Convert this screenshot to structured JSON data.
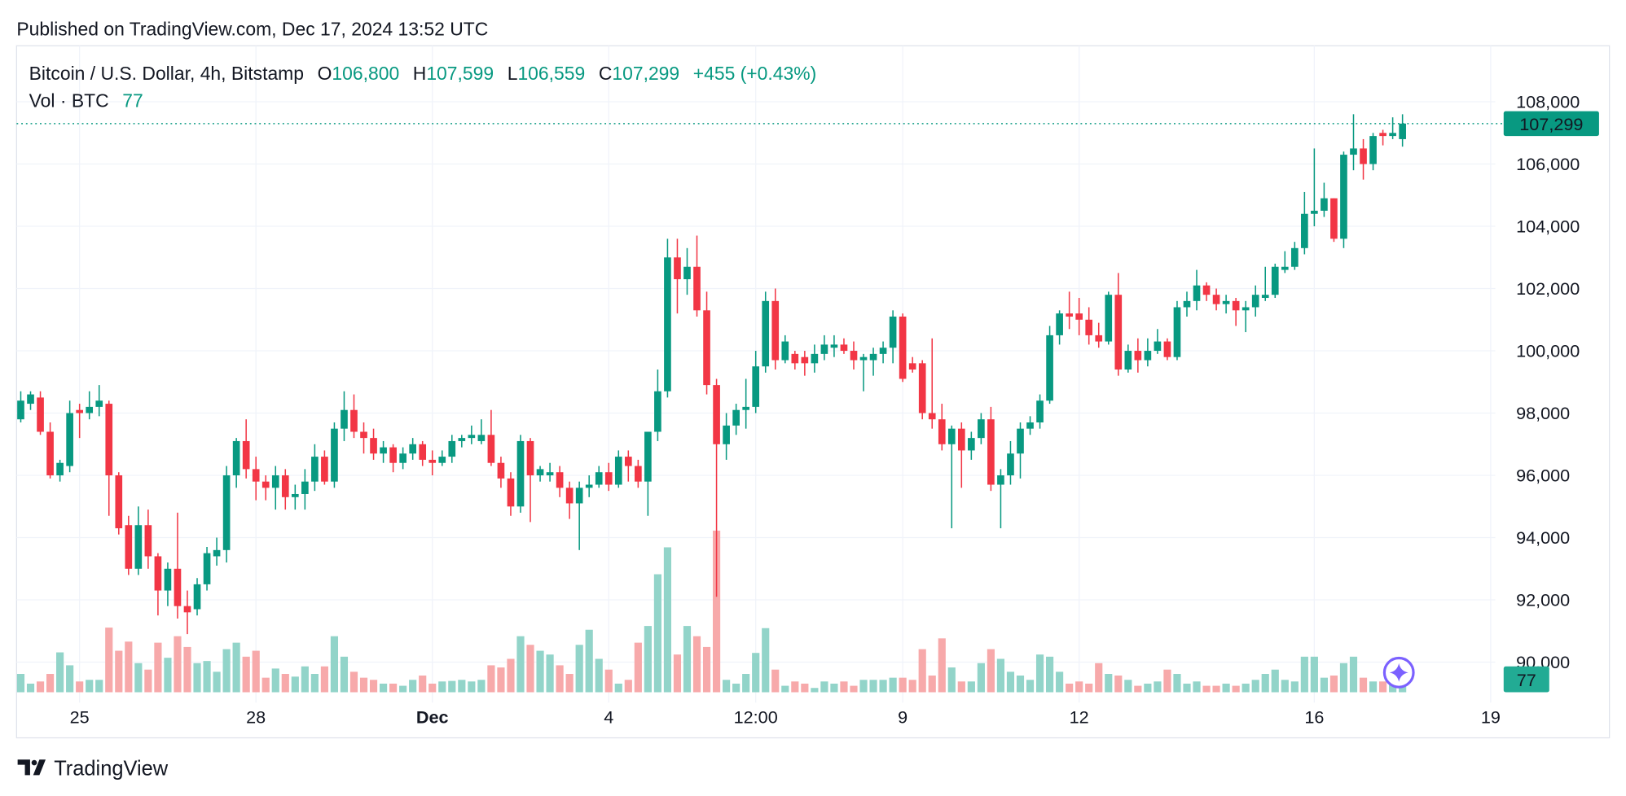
{
  "header": {
    "published": "Published on TradingView.com, Dec 17, 2024 13:52 UTC"
  },
  "footer": {
    "brand": "TradingView"
  },
  "chart_data": {
    "type": "candlestick",
    "symbol": "Bitcoin / U.S. Dollar, 4h, Bitstamp",
    "legend": [
      {
        "key": "O",
        "value": "106,800"
      },
      {
        "key": "H",
        "value": "107,599"
      },
      {
        "key": "L",
        "value": "106,559"
      },
      {
        "key": "C",
        "value": "107,299"
      }
    ],
    "change": "+455 (+0.43%)",
    "volume_label": "Vol · BTC",
    "volume_value": "77",
    "up_color": "#089981",
    "down_color": "#f23645",
    "up_volume_color": "#92d4c9",
    "down_volume_color": "#f7a9aa",
    "grid": true,
    "ylim": [
      88700,
      109800
    ],
    "yticks": [
      {
        "value": 108000,
        "label": "108,000"
      },
      {
        "value": 106000,
        "label": "106,000"
      },
      {
        "value": 104000,
        "label": "104,000"
      },
      {
        "value": 102000,
        "label": "102,000"
      },
      {
        "value": 100000,
        "label": "100,000"
      },
      {
        "value": 98000,
        "label": "98,000"
      },
      {
        "value": 96000,
        "label": "96,000"
      },
      {
        "value": 94000,
        "label": "94,000"
      },
      {
        "value": 92000,
        "label": "92,000"
      },
      {
        "value": 90000,
        "label": "90,000"
      }
    ],
    "last_price": {
      "value": 107299,
      "label": "107,299"
    },
    "last_volume": {
      "value": 77,
      "label": "77"
    },
    "categories": [
      null,
      null,
      null,
      null,
      null,
      null,
      "25",
      null,
      null,
      null,
      null,
      null,
      null,
      null,
      null,
      null,
      null,
      null,
      null,
      null,
      null,
      null,
      null,
      null,
      "28",
      null,
      null,
      null,
      null,
      null,
      null,
      null,
      null,
      null,
      null,
      null,
      null,
      null,
      null,
      null,
      null,
      null,
      "Dec",
      null,
      null,
      null,
      null,
      null,
      null,
      null,
      null,
      null,
      null,
      null,
      null,
      null,
      null,
      null,
      null,
      null,
      "4",
      null,
      null,
      null,
      null,
      null,
      null,
      null,
      null,
      null,
      null,
      null,
      null,
      null,
      null,
      "12:00",
      null,
      null,
      null,
      null,
      null,
      null,
      null,
      null,
      null,
      null,
      null,
      null,
      null,
      null,
      "9",
      null,
      null,
      null,
      null,
      null,
      null,
      null,
      null,
      null,
      null,
      null,
      null,
      null,
      null,
      null,
      null,
      null,
      "12",
      null,
      null,
      null,
      null,
      null,
      null,
      null,
      null,
      null,
      null,
      null,
      null,
      null,
      null,
      null,
      null,
      null,
      null,
      null,
      null,
      null,
      null,
      null,
      "16",
      null,
      null,
      null,
      null,
      null,
      null,
      null,
      null,
      null,
      null,
      null,
      null,
      null,
      null,
      null,
      null,
      null,
      "19"
    ],
    "open": [
      97800,
      98300,
      98500,
      97400,
      96000,
      96300,
      98100,
      98000,
      98200,
      98300,
      96000,
      94400,
      93000,
      94400,
      93400,
      92300,
      93000,
      91800,
      91700,
      92500,
      93400,
      93600,
      96000,
      97100,
      96200,
      95800,
      95600,
      96000,
      95300,
      95400,
      95800,
      96600,
      95800,
      97500,
      98100,
      97400,
      97200,
      96700,
      96900,
      96400,
      96700,
      97000,
      96500,
      96400,
      96600,
      97100,
      97200,
      97100,
      97300,
      96400,
      95900,
      95000,
      97100,
      96000,
      96000,
      96100,
      95600,
      95100,
      95600,
      95700,
      96100,
      95700,
      96600,
      96300,
      95800,
      97400,
      98700,
      103000,
      102300,
      102700,
      101300,
      98900,
      97000,
      97600,
      98100,
      98200,
      99500,
      101600,
      99700,
      99900,
      99800,
      99600,
      99900,
      100100,
      100200,
      100000,
      99700,
      99700,
      99900,
      100100,
      101100,
      99600,
      99600,
      98000,
      97800,
      97000,
      97500,
      96800,
      97200,
      97800,
      95700,
      96000,
      96700,
      97500,
      97700,
      98400,
      100500,
      101200,
      101200,
      101000,
      100500,
      100300,
      101800,
      99400,
      100000,
      99700,
      100000,
      100300,
      99800,
      101400,
      101600,
      102100,
      101800,
      101500,
      101600,
      101300,
      101400,
      101700,
      101800,
      102600,
      102700,
      103300,
      104400,
      104500,
      104900,
      103600,
      106300,
      106500,
      106000,
      107000,
      106900,
      106800,
      null,
      null,
      null,
      null,
      null,
      null,
      null,
      null,
      null
    ],
    "high": [
      98700,
      98700,
      98700,
      97700,
      96500,
      98400,
      98300,
      98700,
      98900,
      98400,
      96100,
      94700,
      95000,
      94900,
      93500,
      93200,
      94800,
      92300,
      92700,
      93700,
      94000,
      96300,
      97200,
      97800,
      96600,
      96000,
      96300,
      96200,
      95700,
      96200,
      97000,
      96800,
      97700,
      98700,
      98600,
      97700,
      97500,
      97100,
      97000,
      96900,
      97200,
      97100,
      96800,
      96800,
      97300,
      97300,
      97600,
      97800,
      98100,
      96600,
      96100,
      97300,
      97200,
      96300,
      96400,
      96300,
      95800,
      95800,
      96000,
      96300,
      96400,
      96800,
      96800,
      96500,
      97400,
      99400,
      103600,
      103600,
      103300,
      103700,
      101900,
      99100,
      98000,
      98300,
      99100,
      100000,
      101900,
      102000,
      100500,
      100000,
      100000,
      100200,
      100500,
      100500,
      100400,
      100300,
      99900,
      100100,
      100300,
      101300,
      101200,
      99800,
      99700,
      100400,
      98300,
      97600,
      97700,
      97400,
      98000,
      98200,
      96200,
      97100,
      97700,
      97900,
      98600,
      100800,
      101300,
      101900,
      101700,
      101400,
      100900,
      101900,
      102500,
      100200,
      100400,
      100400,
      100700,
      100400,
      101600,
      101900,
      102600,
      102200,
      102000,
      101800,
      101700,
      101600,
      102100,
      102700,
      102800,
      103200,
      103500,
      105100,
      106500,
      105400,
      104900,
      106400,
      107600,
      106800,
      107000,
      107100,
      107500,
      107599,
      null,
      null,
      null,
      null,
      null,
      null,
      null,
      null,
      null
    ],
    "low": [
      97700,
      98100,
      97300,
      95900,
      95800,
      96100,
      97200,
      97800,
      97900,
      94700,
      94100,
      92800,
      92800,
      93000,
      91500,
      91800,
      91400,
      90900,
      91500,
      92300,
      93100,
      93200,
      95600,
      95900,
      95200,
      95200,
      94900,
      94900,
      94900,
      94900,
      95500,
      95700,
      95600,
      97100,
      97200,
      96700,
      96500,
      96400,
      96100,
      96200,
      96500,
      96300,
      96000,
      96300,
      96400,
      96900,
      97000,
      97000,
      96300,
      95600,
      94700,
      94800,
      94500,
      95800,
      95800,
      95300,
      94600,
      93600,
      95300,
      95600,
      95500,
      95600,
      95800,
      95600,
      94700,
      97100,
      98500,
      101200,
      101800,
      101100,
      98600,
      92100,
      96500,
      97300,
      97500,
      98000,
      99300,
      99400,
      99600,
      99400,
      99200,
      99300,
      99700,
      99800,
      99900,
      99400,
      98700,
      99200,
      99600,
      99600,
      99000,
      99300,
      97800,
      97500,
      96800,
      94300,
      95600,
      96500,
      97000,
      95500,
      94300,
      95700,
      95900,
      97300,
      97500,
      98300,
      100200,
      100700,
      100500,
      100200,
      100100,
      100200,
      99200,
      99300,
      99300,
      99500,
      99900,
      99700,
      99700,
      101100,
      101300,
      101600,
      101300,
      101200,
      100800,
      100600,
      101100,
      101600,
      101700,
      102500,
      102600,
      103100,
      104000,
      104300,
      103500,
      103300,
      105800,
      105500,
      105800,
      106600,
      106800,
      106559,
      null,
      null,
      null,
      null,
      null,
      null,
      null,
      null,
      null
    ],
    "close": [
      98400,
      98600,
      97400,
      96000,
      96400,
      98000,
      98000,
      98200,
      98400,
      96000,
      94300,
      93000,
      94400,
      93400,
      92300,
      93000,
      91800,
      91600,
      92500,
      93500,
      93600,
      96000,
      97100,
      96200,
      95800,
      95600,
      96000,
      95300,
      95400,
      95800,
      96600,
      95800,
      97500,
      98100,
      97400,
      97200,
      96700,
      96900,
      96400,
      96700,
      97000,
      96500,
      96400,
      96600,
      97100,
      97200,
      97300,
      97300,
      96400,
      95900,
      95000,
      97100,
      96000,
      96200,
      96100,
      95600,
      95100,
      95600,
      95700,
      96100,
      95700,
      96600,
      96300,
      95800,
      97400,
      98700,
      103000,
      102300,
      102700,
      101300,
      98900,
      97000,
      97600,
      98100,
      98200,
      99500,
      101600,
      99700,
      100300,
      99600,
      99600,
      99900,
      100200,
      100200,
      100000,
      99700,
      99800,
      99900,
      100100,
      101100,
      99100,
      99400,
      98000,
      97800,
      97000,
      97500,
      96800,
      97200,
      97800,
      95700,
      96000,
      96700,
      97500,
      97700,
      98400,
      100500,
      101200,
      101100,
      101000,
      100500,
      100300,
      101800,
      99400,
      100000,
      99700,
      100000,
      100300,
      99800,
      101400,
      101600,
      102100,
      101800,
      101500,
      101600,
      101300,
      101400,
      101800,
      101800,
      102700,
      102700,
      103300,
      104400,
      104500,
      104900,
      103600,
      106300,
      106500,
      106000,
      106900,
      106900,
      107000,
      107299,
      null,
      null,
      null,
      null,
      null,
      null,
      null,
      null,
      null
    ],
    "volume": [
      170,
      80,
      100,
      170,
      370,
      250,
      100,
      115,
      115,
      600,
      385,
      470,
      270,
      210,
      460,
      320,
      520,
      420,
      270,
      290,
      190,
      400,
      460,
      330,
      385,
      135,
      220,
      170,
      145,
      240,
      170,
      240,
      520,
      330,
      190,
      135,
      115,
      80,
      80,
      60,
      115,
      155,
      80,
      100,
      105,
      115,
      100,
      115,
      250,
      230,
      310,
      520,
      440,
      385,
      350,
      250,
      170,
      440,
      580,
      310,
      210,
      80,
      115,
      460,
      615,
      1095,
      1345,
      350,
      615,
      520,
      420,
      1500,
      115,
      80,
      170,
      365,
      595,
      210,
      60,
      100,
      80,
      40,
      100,
      80,
      100,
      60,
      115,
      115,
      115,
      135,
      135,
      115,
      400,
      155,
      500,
      230,
      100,
      100,
      270,
      400,
      310,
      190,
      155,
      115,
      350,
      330,
      190,
      80,
      100,
      80,
      270,
      170,
      155,
      115,
      60,
      80,
      100,
      210,
      170,
      80,
      100,
      60,
      60,
      80,
      60,
      80,
      115,
      170,
      210,
      115,
      100,
      330,
      330,
      135,
      155,
      270,
      330,
      135,
      100,
      100,
      115,
      77,
      null,
      null,
      null,
      null,
      null,
      null,
      null,
      null,
      null
    ]
  }
}
